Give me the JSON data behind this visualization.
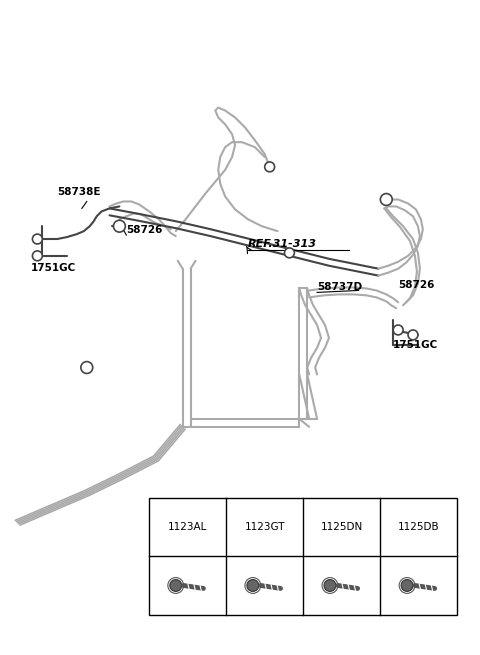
{
  "bg_color": "#ffffff",
  "line_color": "#aaaaaa",
  "dark_line": "#444444",
  "text_color": "#000000",
  "figsize": [
    4.8,
    6.55
  ],
  "dpi": 100,
  "table": {
    "cols": [
      "1123AL",
      "1123GT",
      "1125DN",
      "1125DB"
    ]
  }
}
